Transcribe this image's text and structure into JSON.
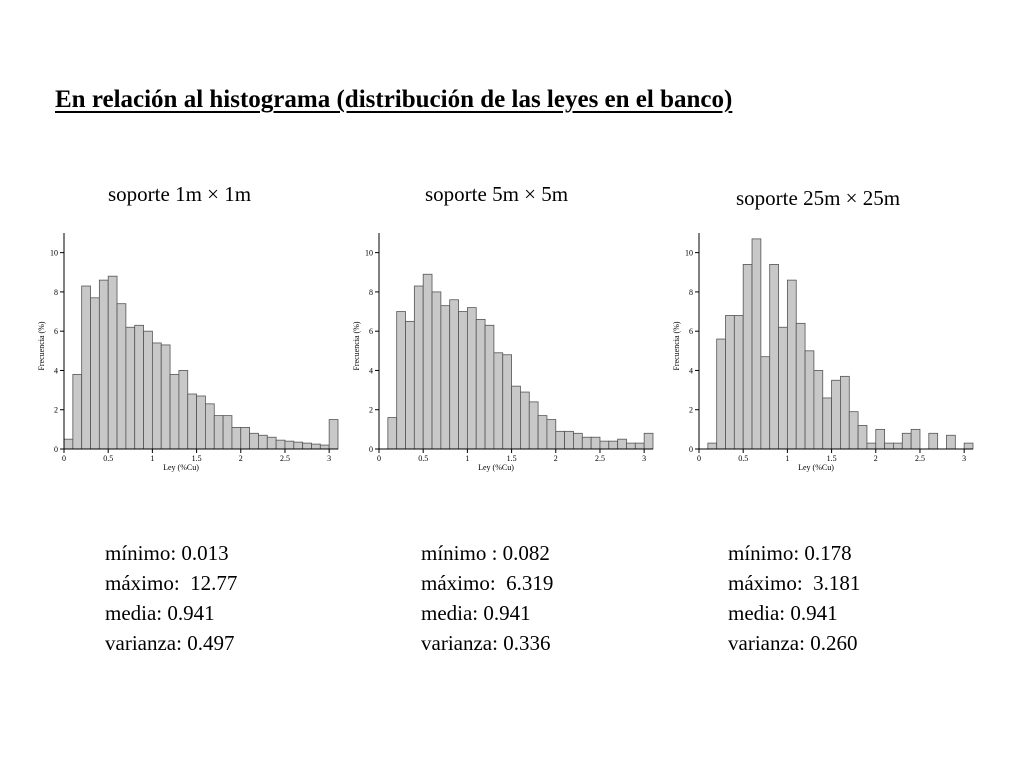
{
  "title": "En relación al histograma (distribución de las leyes en el banco)",
  "panels": [
    {
      "support_label": "soporte 1m × 1m",
      "stats": {
        "min": "mínimo: 0.013",
        "max": "máximo:  12.77",
        "mean": "media: 0.941",
        "variance": "varianza: 0.497"
      }
    },
    {
      "support_label": "soporte 5m × 5m",
      "stats": {
        "min": "mínimo : 0.082",
        "max": "máximo:  6.319",
        "mean": "media: 0.941",
        "variance": "varianza: 0.336"
      }
    },
    {
      "support_label": "soporte 25m × 25m",
      "stats": {
        "min": "mínimo: 0.178",
        "max": "máximo:  3.181",
        "mean": "media: 0.941",
        "variance": "varianza: 0.260"
      }
    }
  ],
  "colors": {
    "bar_fill": "#c8c8c8",
    "bar_stroke": "#555555",
    "axis": "#000000"
  },
  "chart_data": [
    {
      "type": "bar",
      "title": "soporte 1m × 1m",
      "xlabel": "Ley (%Cu)",
      "ylabel": "Frecuencia (%)",
      "xlim": [
        0,
        3.1
      ],
      "ylim": [
        0,
        11
      ],
      "bin_width": 0.1,
      "xticks": [
        "0",
        "0.5",
        "1",
        "1.5",
        "2",
        "2.5",
        "3"
      ],
      "xtick_values": [
        0,
        0.5,
        1,
        1.5,
        2,
        2.5,
        3
      ],
      "yticks": [
        "0",
        "2",
        "4",
        "6",
        "8",
        "10"
      ],
      "ytick_values": [
        0,
        2,
        4,
        6,
        8,
        10
      ],
      "values": [
        0.5,
        3.8,
        8.3,
        7.7,
        8.6,
        8.8,
        7.4,
        6.2,
        6.3,
        6.0,
        5.4,
        5.3,
        3.8,
        4.0,
        2.8,
        2.7,
        2.3,
        1.7,
        1.7,
        1.1,
        1.1,
        0.8,
        0.7,
        0.6,
        0.45,
        0.4,
        0.35,
        0.3,
        0.25,
        0.2,
        1.5
      ]
    },
    {
      "type": "bar",
      "title": "soporte 5m × 5m",
      "xlabel": "Ley (%Cu)",
      "ylabel": "Frecuencia (%)",
      "xlim": [
        0,
        3.1
      ],
      "ylim": [
        0,
        11
      ],
      "bin_width": 0.1,
      "xticks": [
        "0",
        "0.5",
        "1",
        "1.5",
        "2",
        "2.5",
        "3"
      ],
      "xtick_values": [
        0,
        0.5,
        1,
        1.5,
        2,
        2.5,
        3
      ],
      "yticks": [
        "0",
        "2",
        "4",
        "6",
        "8",
        "10"
      ],
      "ytick_values": [
        0,
        2,
        4,
        6,
        8,
        10
      ],
      "values": [
        0,
        1.6,
        7.0,
        6.5,
        8.3,
        8.9,
        8.0,
        7.3,
        7.6,
        7.0,
        7.2,
        6.6,
        6.3,
        4.9,
        4.8,
        3.2,
        2.9,
        2.4,
        1.7,
        1.5,
        0.9,
        0.9,
        0.8,
        0.6,
        0.6,
        0.4,
        0.4,
        0.5,
        0.3,
        0.3,
        0.8
      ]
    },
    {
      "type": "bar",
      "title": "soporte 25m × 25m",
      "xlabel": "Ley (%Cu)",
      "ylabel": "Frecuencia (%)",
      "xlim": [
        0,
        3.1
      ],
      "ylim": [
        0,
        11
      ],
      "bin_width": 0.1,
      "xticks": [
        "0",
        "0.5",
        "1",
        "1.5",
        "2",
        "2.5",
        "3"
      ],
      "xtick_values": [
        0,
        0.5,
        1,
        1.5,
        2,
        2.5,
        3
      ],
      "yticks": [
        "0",
        "2",
        "4",
        "6",
        "8",
        "10"
      ],
      "ytick_values": [
        0,
        2,
        4,
        6,
        8,
        10
      ],
      "values": [
        0,
        0.3,
        5.6,
        6.8,
        6.8,
        9.4,
        10.7,
        4.7,
        9.4,
        6.2,
        8.6,
        6.4,
        5.0,
        4.0,
        2.6,
        3.5,
        3.7,
        1.9,
        1.2,
        0.3,
        1.0,
        0.3,
        0.3,
        0.8,
        1.0,
        0,
        0.8,
        0,
        0.7,
        0,
        0.3
      ]
    }
  ]
}
